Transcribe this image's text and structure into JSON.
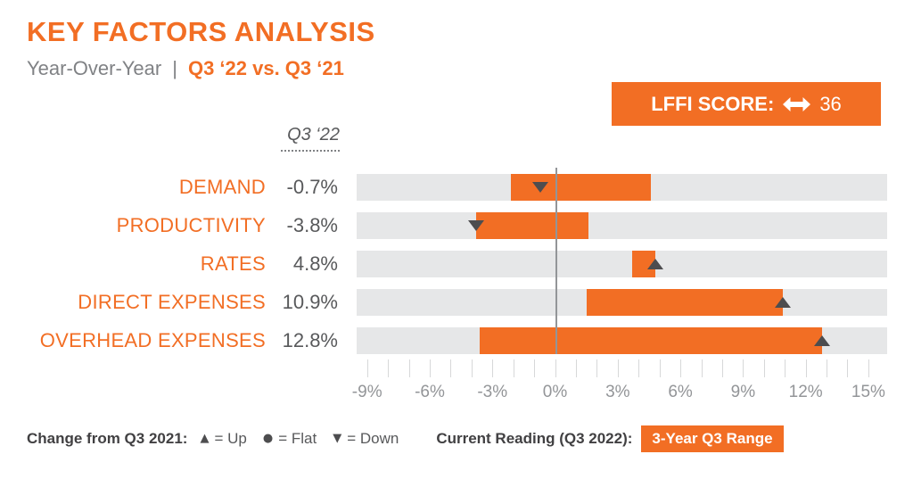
{
  "header": {
    "title": "KEY FACTORS ANALYSIS",
    "subtitle_left": "Year-Over-Year",
    "subtitle_sep": "|",
    "subtitle_right": "Q3 ‘22 vs. Q3 ‘21"
  },
  "lffi_badge": {
    "label": "LFFI SCORE:",
    "icon": "left-right-arrow-icon",
    "value": "36"
  },
  "chart_data": {
    "type": "bar",
    "subtype": "horizontal-range-bars-with-current-reading-markers",
    "column_header": "Q3 ‘22",
    "axis": {
      "min": -9.5,
      "max": 15.9,
      "zero": 0,
      "unit": "%",
      "grid": false,
      "ticks": {
        "min": -9,
        "max": 15,
        "step": 1
      },
      "labels": [
        {
          "value": -9,
          "text": "-9%"
        },
        {
          "value": -6,
          "text": "-6%"
        },
        {
          "value": -3,
          "text": "-3%"
        },
        {
          "value": 0,
          "text": "0%"
        },
        {
          "value": 3,
          "text": "3%"
        },
        {
          "value": 6,
          "text": "6%"
        },
        {
          "value": 9,
          "text": "9%"
        },
        {
          "value": 12,
          "text": "12%"
        },
        {
          "value": 15,
          "text": "15%"
        }
      ]
    },
    "rows": [
      {
        "label": "DEMAND",
        "value_label": "-0.7%",
        "current": -0.7,
        "range": [
          -2.1,
          4.6
        ],
        "direction": "down"
      },
      {
        "label": "PRODUCTIVITY",
        "value_label": "-3.8%",
        "current": -3.8,
        "range": [
          -3.8,
          1.6
        ],
        "direction": "down"
      },
      {
        "label": "RATES",
        "value_label": "4.8%",
        "current": 4.8,
        "range": [
          3.7,
          4.8
        ],
        "direction": "up"
      },
      {
        "label": "DIRECT EXPENSES",
        "value_label": "10.9%",
        "current": 10.9,
        "range": [
          1.5,
          10.9
        ],
        "direction": "up"
      },
      {
        "label": "OVERHEAD EXPENSES",
        "value_label": "12.8%",
        "current": 12.8,
        "range": [
          -3.6,
          12.8
        ],
        "direction": "up"
      }
    ]
  },
  "legend": {
    "change_label": "Change from Q3 2021:",
    "items": [
      {
        "symbol": "up-triangle",
        "text": "= Up"
      },
      {
        "symbol": "circle",
        "text": "= Flat"
      },
      {
        "symbol": "down-triangle",
        "text": "= Down"
      }
    ],
    "current_label": "Current Reading (Q3 2022):",
    "range_badge": "3-Year Q3 Range"
  },
  "colors": {
    "orange": "#F26E24",
    "track_gray": "#E6E7E8",
    "dark_text": "#58595B",
    "mid_gray": "#808285",
    "axis_gray": "#939598",
    "tick_gray": "#D7D8D9",
    "marker_gray": "#4D4D4F",
    "legend_dark": "#414042"
  }
}
